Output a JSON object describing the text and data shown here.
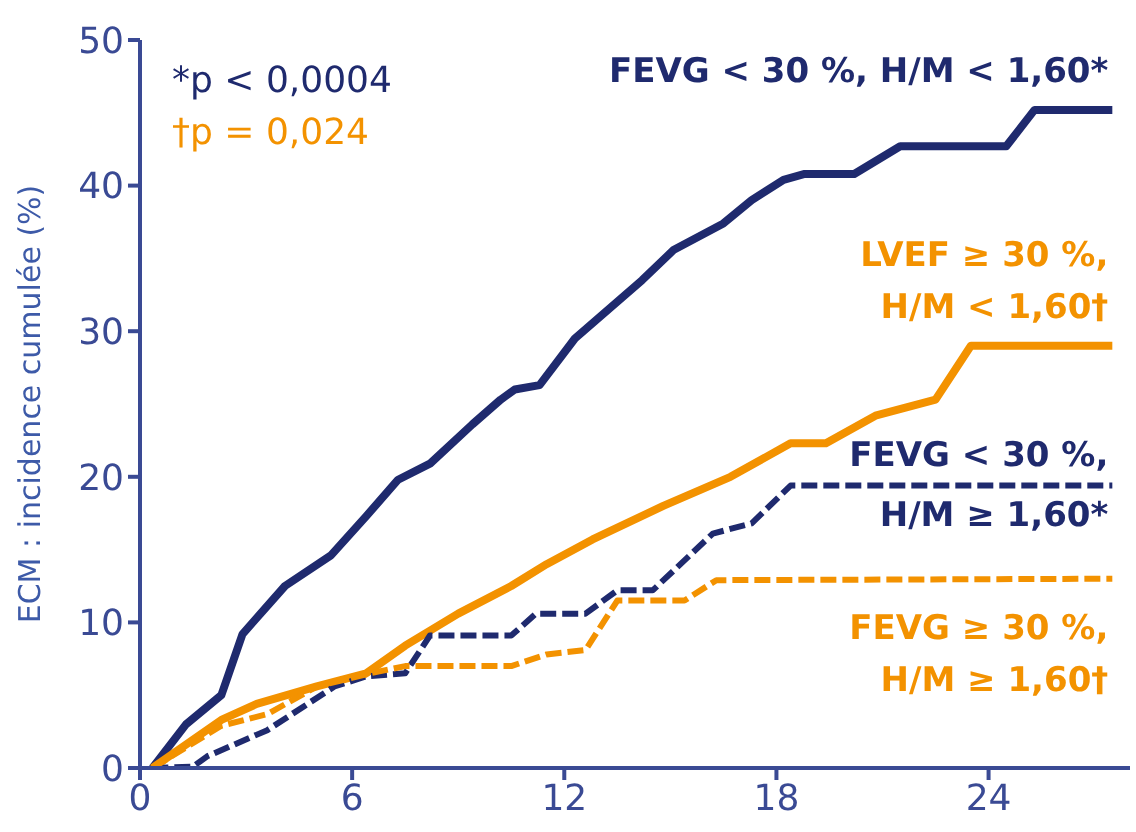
{
  "chart_data": {
    "type": "line",
    "ylabel": "ECM : incidence cumulée (%)",
    "xlim": [
      0,
      28
    ],
    "xticks": [
      0,
      6,
      12,
      18,
      24
    ],
    "ylim": [
      0,
      50
    ],
    "yticks": [
      0,
      10,
      20,
      30,
      40,
      50
    ],
    "marker": "none",
    "annotations": [
      "*p < 0,0004",
      "†p = 0,024"
    ],
    "series": [
      {
        "name": "FEVG < 30 %, H/M < 1,60*",
        "color": "#1f2a6e",
        "line_style": "solid",
        "x": [
          0.35,
          1.3,
          2.3,
          2.9,
          4.1,
          5.4,
          6.4,
          7.3,
          8.2,
          9.4,
          10.2,
          10.6,
          11.3,
          12.3,
          14.2,
          15.1,
          16.5,
          17.3,
          18.2,
          18.8,
          20.2,
          21.5,
          24.5,
          25.3,
          27.5
        ],
        "values": [
          0,
          3,
          5,
          9.2,
          12.5,
          14.6,
          17.3,
          19.8,
          20.9,
          23.6,
          25.3,
          26,
          26.3,
          29.5,
          33.5,
          35.6,
          37.4,
          39,
          40.4,
          40.8,
          40.8,
          42.7,
          42.7,
          45.2,
          45.2
        ]
      },
      {
        "name": "LVEF ≥ 30 %, H/M < 1,60†",
        "color": "#f39200",
        "line_style": "solid",
        "x": [
          0.35,
          2.3,
          3.3,
          5,
          6.4,
          7.5,
          9,
          10.5,
          11.5,
          12.8,
          14.8,
          16.7,
          18.4,
          19.4,
          20.8,
          22.5,
          23.5,
          27.5
        ],
        "values": [
          0,
          3.3,
          4.4,
          5.6,
          6.5,
          8.4,
          10.6,
          12.5,
          14,
          15.7,
          18,
          20,
          22.3,
          22.3,
          24.2,
          25.3,
          29,
          29
        ]
      },
      {
        "name": "FEVG < 30 %, H/M ≥ 1,60*",
        "color": "#1f2a6e",
        "line_style": "dashed",
        "x": [
          0.35,
          1.5,
          1.9,
          3.6,
          5.5,
          6.4,
          7.5,
          8.2,
          10.5,
          11.2,
          12.6,
          13.5,
          14.5,
          16.2,
          17.3,
          18.4,
          27.5
        ],
        "values": [
          0,
          0.1,
          0.8,
          2.6,
          5.6,
          6.3,
          6.5,
          9.1,
          9.1,
          10.6,
          10.6,
          12.2,
          12.2,
          16.1,
          16.8,
          19.4,
          19.4
        ]
      },
      {
        "name": "FEVG ≥ 30 %, H/M ≥ 1,60†",
        "color": "#f39200",
        "line_style": "dashed",
        "x": [
          0.35,
          2.3,
          3.6,
          5,
          6.5,
          7.5,
          10.5,
          11.5,
          12.6,
          13.5,
          15.4,
          16.3,
          27.5
        ],
        "values": [
          0,
          2.9,
          3.7,
          5.6,
          6.5,
          7,
          7,
          7.8,
          8.1,
          11.5,
          11.5,
          12.9,
          13
        ]
      }
    ]
  }
}
